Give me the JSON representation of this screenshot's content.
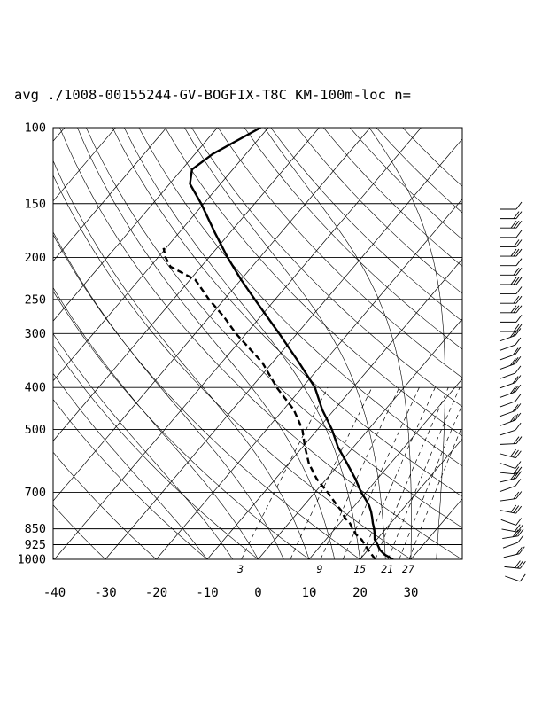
{
  "chart_data": {
    "type": "skew-t",
    "title": "avg ./1008-00155244-GV-BOGFIX-T8C KM-100m-loc n=",
    "pressure_levels": [
      "100",
      "150",
      "200",
      "250",
      "300",
      "400",
      "500",
      "700",
      "850",
      "925",
      "1000"
    ],
    "temperature_ticks": [
      "-40",
      "-30",
      "-20",
      "-10",
      "0",
      "10",
      "20",
      "30"
    ],
    "mixing_ratio_labels": [
      "3",
      "9",
      "15",
      "21",
      "27"
    ],
    "temperature_profile": [
      {
        "p": 1000,
        "t": 26.5
      },
      {
        "p": 975,
        "t": 24.0
      },
      {
        "p": 950,
        "t": 22.3
      },
      {
        "p": 925,
        "t": 21.0
      },
      {
        "p": 900,
        "t": 19.6
      },
      {
        "p": 875,
        "t": 18.7
      },
      {
        "p": 850,
        "t": 17.7
      },
      {
        "p": 825,
        "t": 16.5
      },
      {
        "p": 800,
        "t": 15.4
      },
      {
        "p": 775,
        "t": 14.2
      },
      {
        "p": 750,
        "t": 12.8
      },
      {
        "p": 725,
        "t": 11.0
      },
      {
        "p": 700,
        "t": 9.1
      },
      {
        "p": 650,
        "t": 5.6
      },
      {
        "p": 600,
        "t": 1.5
      },
      {
        "p": 550,
        "t": -3.0
      },
      {
        "p": 500,
        "t": -7.2
      },
      {
        "p": 450,
        "t": -12.4
      },
      {
        "p": 400,
        "t": -17.5
      },
      {
        "p": 350,
        "t": -24.8
      },
      {
        "p": 300,
        "t": -33.5
      },
      {
        "p": 250,
        "t": -44.0
      },
      {
        "p": 225,
        "t": -50.0
      },
      {
        "p": 200,
        "t": -56.3
      },
      {
        "p": 175,
        "t": -63.0
      },
      {
        "p": 150,
        "t": -70.5
      },
      {
        "p": 135,
        "t": -76.0
      },
      {
        "p": 125,
        "t": -78.0
      },
      {
        "p": 115,
        "t": -76.5
      },
      {
        "p": 100,
        "t": -71.5
      }
    ],
    "dewpoint_profile": [
      {
        "p": 1000,
        "t": 23.0
      },
      {
        "p": 975,
        "t": 21.5
      },
      {
        "p": 950,
        "t": 20.0
      },
      {
        "p": 925,
        "t": 18.5
      },
      {
        "p": 900,
        "t": 17.0
      },
      {
        "p": 875,
        "t": 15.0
      },
      {
        "p": 850,
        "t": 13.5
      },
      {
        "p": 825,
        "t": 12.0
      },
      {
        "p": 800,
        "t": 10.0
      },
      {
        "p": 775,
        "t": 8.5
      },
      {
        "p": 750,
        "t": 6.5
      },
      {
        "p": 700,
        "t": 2.5
      },
      {
        "p": 650,
        "t": -2.0
      },
      {
        "p": 600,
        "t": -6.0
      },
      {
        "p": 550,
        "t": -9.5
      },
      {
        "p": 500,
        "t": -13.0
      },
      {
        "p": 450,
        "t": -18.0
      },
      {
        "p": 400,
        "t": -25.0
      },
      {
        "p": 350,
        "t": -32.0
      },
      {
        "p": 300,
        "t": -42.0
      },
      {
        "p": 275,
        "t": -47.0
      },
      {
        "p": 250,
        "t": -53.0
      },
      {
        "p": 225,
        "t": -59.0
      },
      {
        "p": 210,
        "t": -66.0
      },
      {
        "p": 200,
        "t": -68.5
      },
      {
        "p": 190,
        "t": -70.5
      }
    ],
    "wind_profile_count": 40
  }
}
